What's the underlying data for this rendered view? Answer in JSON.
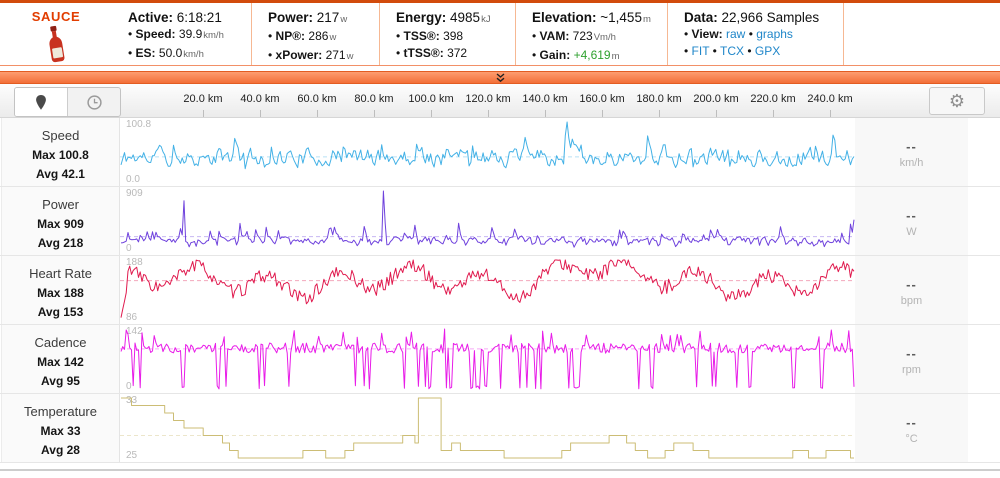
{
  "colors": {
    "accent_orange": "#f36f38",
    "header_border": "#d24b0c",
    "link": "#1f86c9",
    "gain_green": "#2fa12f",
    "speed_line": "#43b1e6",
    "power_line": "#6f42dd",
    "heart_rate_line": "#e01a4e",
    "cadence_line": "#e81ce8",
    "temperature_line": "#ccbd75"
  },
  "header": {
    "logo_text": "SAUCE",
    "gain_style": "color:#2fa12f",
    "active": {
      "label": "Active:",
      "value": "6:18:21",
      "sub": [
        {
          "label": "Speed:",
          "value": "39.9",
          "unit": "km/h"
        },
        {
          "label": "ES:",
          "value": "50.0",
          "unit": "km/h"
        }
      ]
    },
    "power": {
      "label": "Power:",
      "value": "217",
      "unit": "w",
      "sub": [
        {
          "label": "NP®:",
          "value": "286",
          "unit": "w"
        },
        {
          "label": "xPower:",
          "value": "271",
          "unit": "w"
        }
      ]
    },
    "energy": {
      "label": "Energy:",
      "value": "4985",
      "unit": "kJ",
      "sub": [
        {
          "label": "TSS®:",
          "value": "398",
          "unit": ""
        },
        {
          "label": "tTSS®:",
          "value": "372",
          "unit": ""
        }
      ]
    },
    "elevation": {
      "label": "Elevation:",
      "value": "~1,455",
      "unit": "m",
      "sub": [
        {
          "label": "VAM:",
          "value": "723",
          "unit": "Vm/h"
        },
        {
          "label": "Gain:",
          "value": "+4,619",
          "unit": "m"
        }
      ]
    },
    "data": {
      "label": "Data:",
      "value": "22,966 Samples",
      "view_label": "View:",
      "view_links": [
        "raw",
        "graphs"
      ],
      "file_links": [
        "FIT",
        "TCX",
        "GPX"
      ]
    }
  },
  "toolbar": {
    "x_tick_labels": [
      "20.0 km",
      "40.0 km",
      "60.0 km",
      "80.0 km",
      "100.0 km",
      "120.0 km",
      "140.0 km",
      "160.0 km",
      "180.0 km",
      "200.0 km",
      "220.0 km",
      "240.0 km"
    ]
  },
  "x_axis": {
    "start_km": 0,
    "end_km": 256,
    "tick_interval_km": 20,
    "unit": "km"
  },
  "chart_data": [
    {
      "type": "line",
      "name": "Speed",
      "max": 100.8,
      "avg": 42.1,
      "ylim": [
        0,
        100.8
      ],
      "y_axis_top": "100.8",
      "y_axis_bottom": "0.0",
      "max_label": "Max 100.8",
      "avg_label": "Avg 42.1",
      "unit": "km/h",
      "current_value": "--",
      "color": "#43b1e6",
      "shape": "noisy",
      "seed": 11,
      "avg_line": true,
      "grid": false
    },
    {
      "type": "line",
      "name": "Power",
      "max": 909,
      "avg": 218,
      "ylim": [
        0,
        909
      ],
      "y_axis_top": "909",
      "y_axis_bottom": "0",
      "max_label": "Max 909",
      "avg_label": "Avg 218",
      "unit": "W",
      "current_value": "--",
      "color": "#6f42dd",
      "shape": "spiky",
      "seed": 22,
      "avg_line": true,
      "grid": false
    },
    {
      "type": "line",
      "name": "Heart Rate",
      "max": 188,
      "avg": 153,
      "ylim": [
        86,
        188
      ],
      "y_axis_top": "188",
      "y_axis_bottom": "86",
      "max_label": "Max 188",
      "avg_label": "Avg 153",
      "unit": "bpm",
      "current_value": "--",
      "color": "#e01a4e",
      "shape": "wave",
      "seed": 33,
      "avg_line": true,
      "grid": false
    },
    {
      "type": "line",
      "name": "Cadence",
      "max": 142,
      "avg": 95,
      "ylim": [
        0,
        142
      ],
      "y_axis_top": "142",
      "y_axis_bottom": "0",
      "max_label": "Max 142",
      "avg_label": "Avg 95",
      "unit": "rpm",
      "current_value": "--",
      "color": "#e81ce8",
      "shape": "dropout",
      "seed": 44,
      "avg_line": true,
      "grid": false
    },
    {
      "type": "line",
      "name": "Temperature",
      "max": 33,
      "avg": 28,
      "ylim": [
        25,
        33
      ],
      "y_axis_top": "33",
      "y_axis_bottom": "25",
      "max_label": "Max 33",
      "avg_label": "Avg 28",
      "unit": "°C",
      "current_value": "--",
      "color": "#ccbd75",
      "shape": "step",
      "seed": 55,
      "avg_line": true,
      "grid": false
    }
  ]
}
